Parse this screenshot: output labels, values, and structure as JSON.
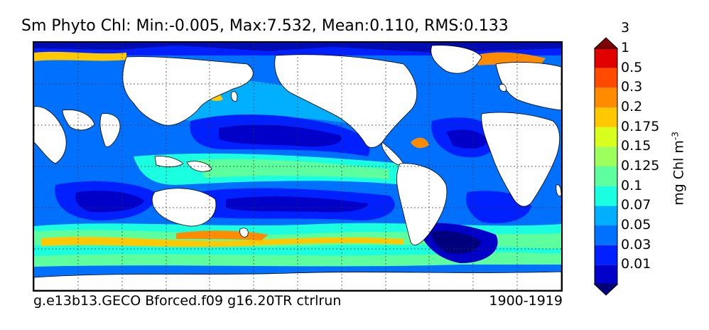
{
  "title": "Sm Phyto Chl: Min:-0.005, Max:7.532, Mean:0.110, RMS:0.133",
  "footer": {
    "run_name": "g.e13b13.GECO Bforced.f09 g16.20TR ctrlrun",
    "period": "1900-1919"
  },
  "colorbar": {
    "unit": "mg Chl m",
    "unit_exponent": "-3",
    "tick_labels": [
      "0.01",
      "0.03",
      "0.05",
      "0.07",
      "0.1",
      "0.125",
      "0.15",
      "0.175",
      "0.2",
      "0.3",
      "0.5",
      "1",
      "3"
    ],
    "colors": [
      "#00007f",
      "#0000c8",
      "#0020ff",
      "#0070ff",
      "#00b0ff",
      "#19ffe0",
      "#5dff9e",
      "#9cff5e",
      "#d8ff1e",
      "#ffc800",
      "#ff8c00",
      "#ff4a00",
      "#e00000",
      "#7f0000"
    ]
  },
  "map": {
    "projection": "cylindrical equidistant",
    "graticule": "dashed",
    "land_color": "#ffffff",
    "coastline_color": "#000000"
  }
}
